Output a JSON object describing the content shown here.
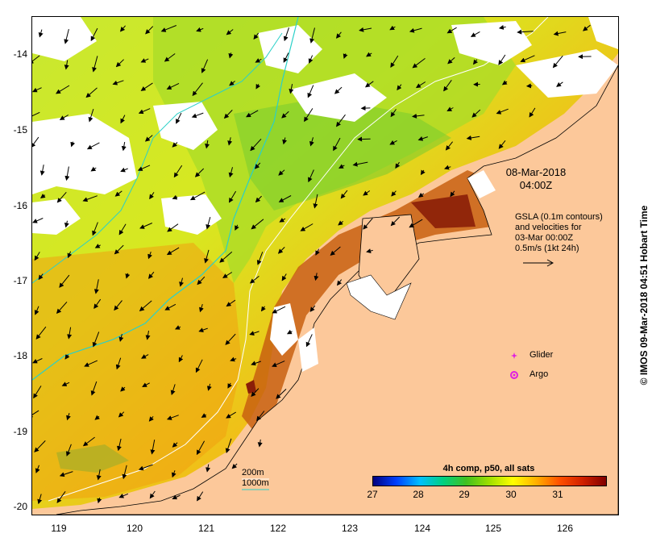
{
  "map": {
    "y_tick_labels": [
      "-14",
      "-15",
      "-16",
      "-17",
      "-18",
      "-19",
      "-20"
    ],
    "x_tick_labels": [
      "119",
      "120",
      "121",
      "122",
      "123",
      "124",
      "125",
      "126"
    ],
    "land_color": "#fcc89a",
    "no_data_color": "#ffffff",
    "contour_200m_color": "#2ad0c8",
    "contour_1000m_color": "#ffffff",
    "velocity_arrow_color": "#000000"
  },
  "date_block": {
    "line1": "08-Mar-2018",
    "line2": "04:00Z"
  },
  "gsla_block": {
    "line1": "GSLA (0.1m contours)",
    "line2": "and velocities for",
    "line3": "03-Mar 00:00Z",
    "line4": "0.5m/s (1kt 24h)"
  },
  "legend": {
    "glider": {
      "label": "Glider",
      "color": "#e020e0"
    },
    "argo": {
      "label": "Argo",
      "color": "#e020e0"
    }
  },
  "contour_key": {
    "line1": "200m",
    "line2": "1000m"
  },
  "colorbar": {
    "title": "4h comp, p50, all sats",
    "tick_labels": [
      "27",
      "28",
      "29",
      "30",
      "31"
    ],
    "colors": [
      "#00007f",
      "#0040ff",
      "#00bfff",
      "#00d080",
      "#40c020",
      "#a0e000",
      "#ffff00",
      "#ffb000",
      "#ff5000",
      "#d02000",
      "#800000"
    ]
  },
  "watermark": "© IMOS 09-Mar-2018 04:51 Hobart Time"
}
